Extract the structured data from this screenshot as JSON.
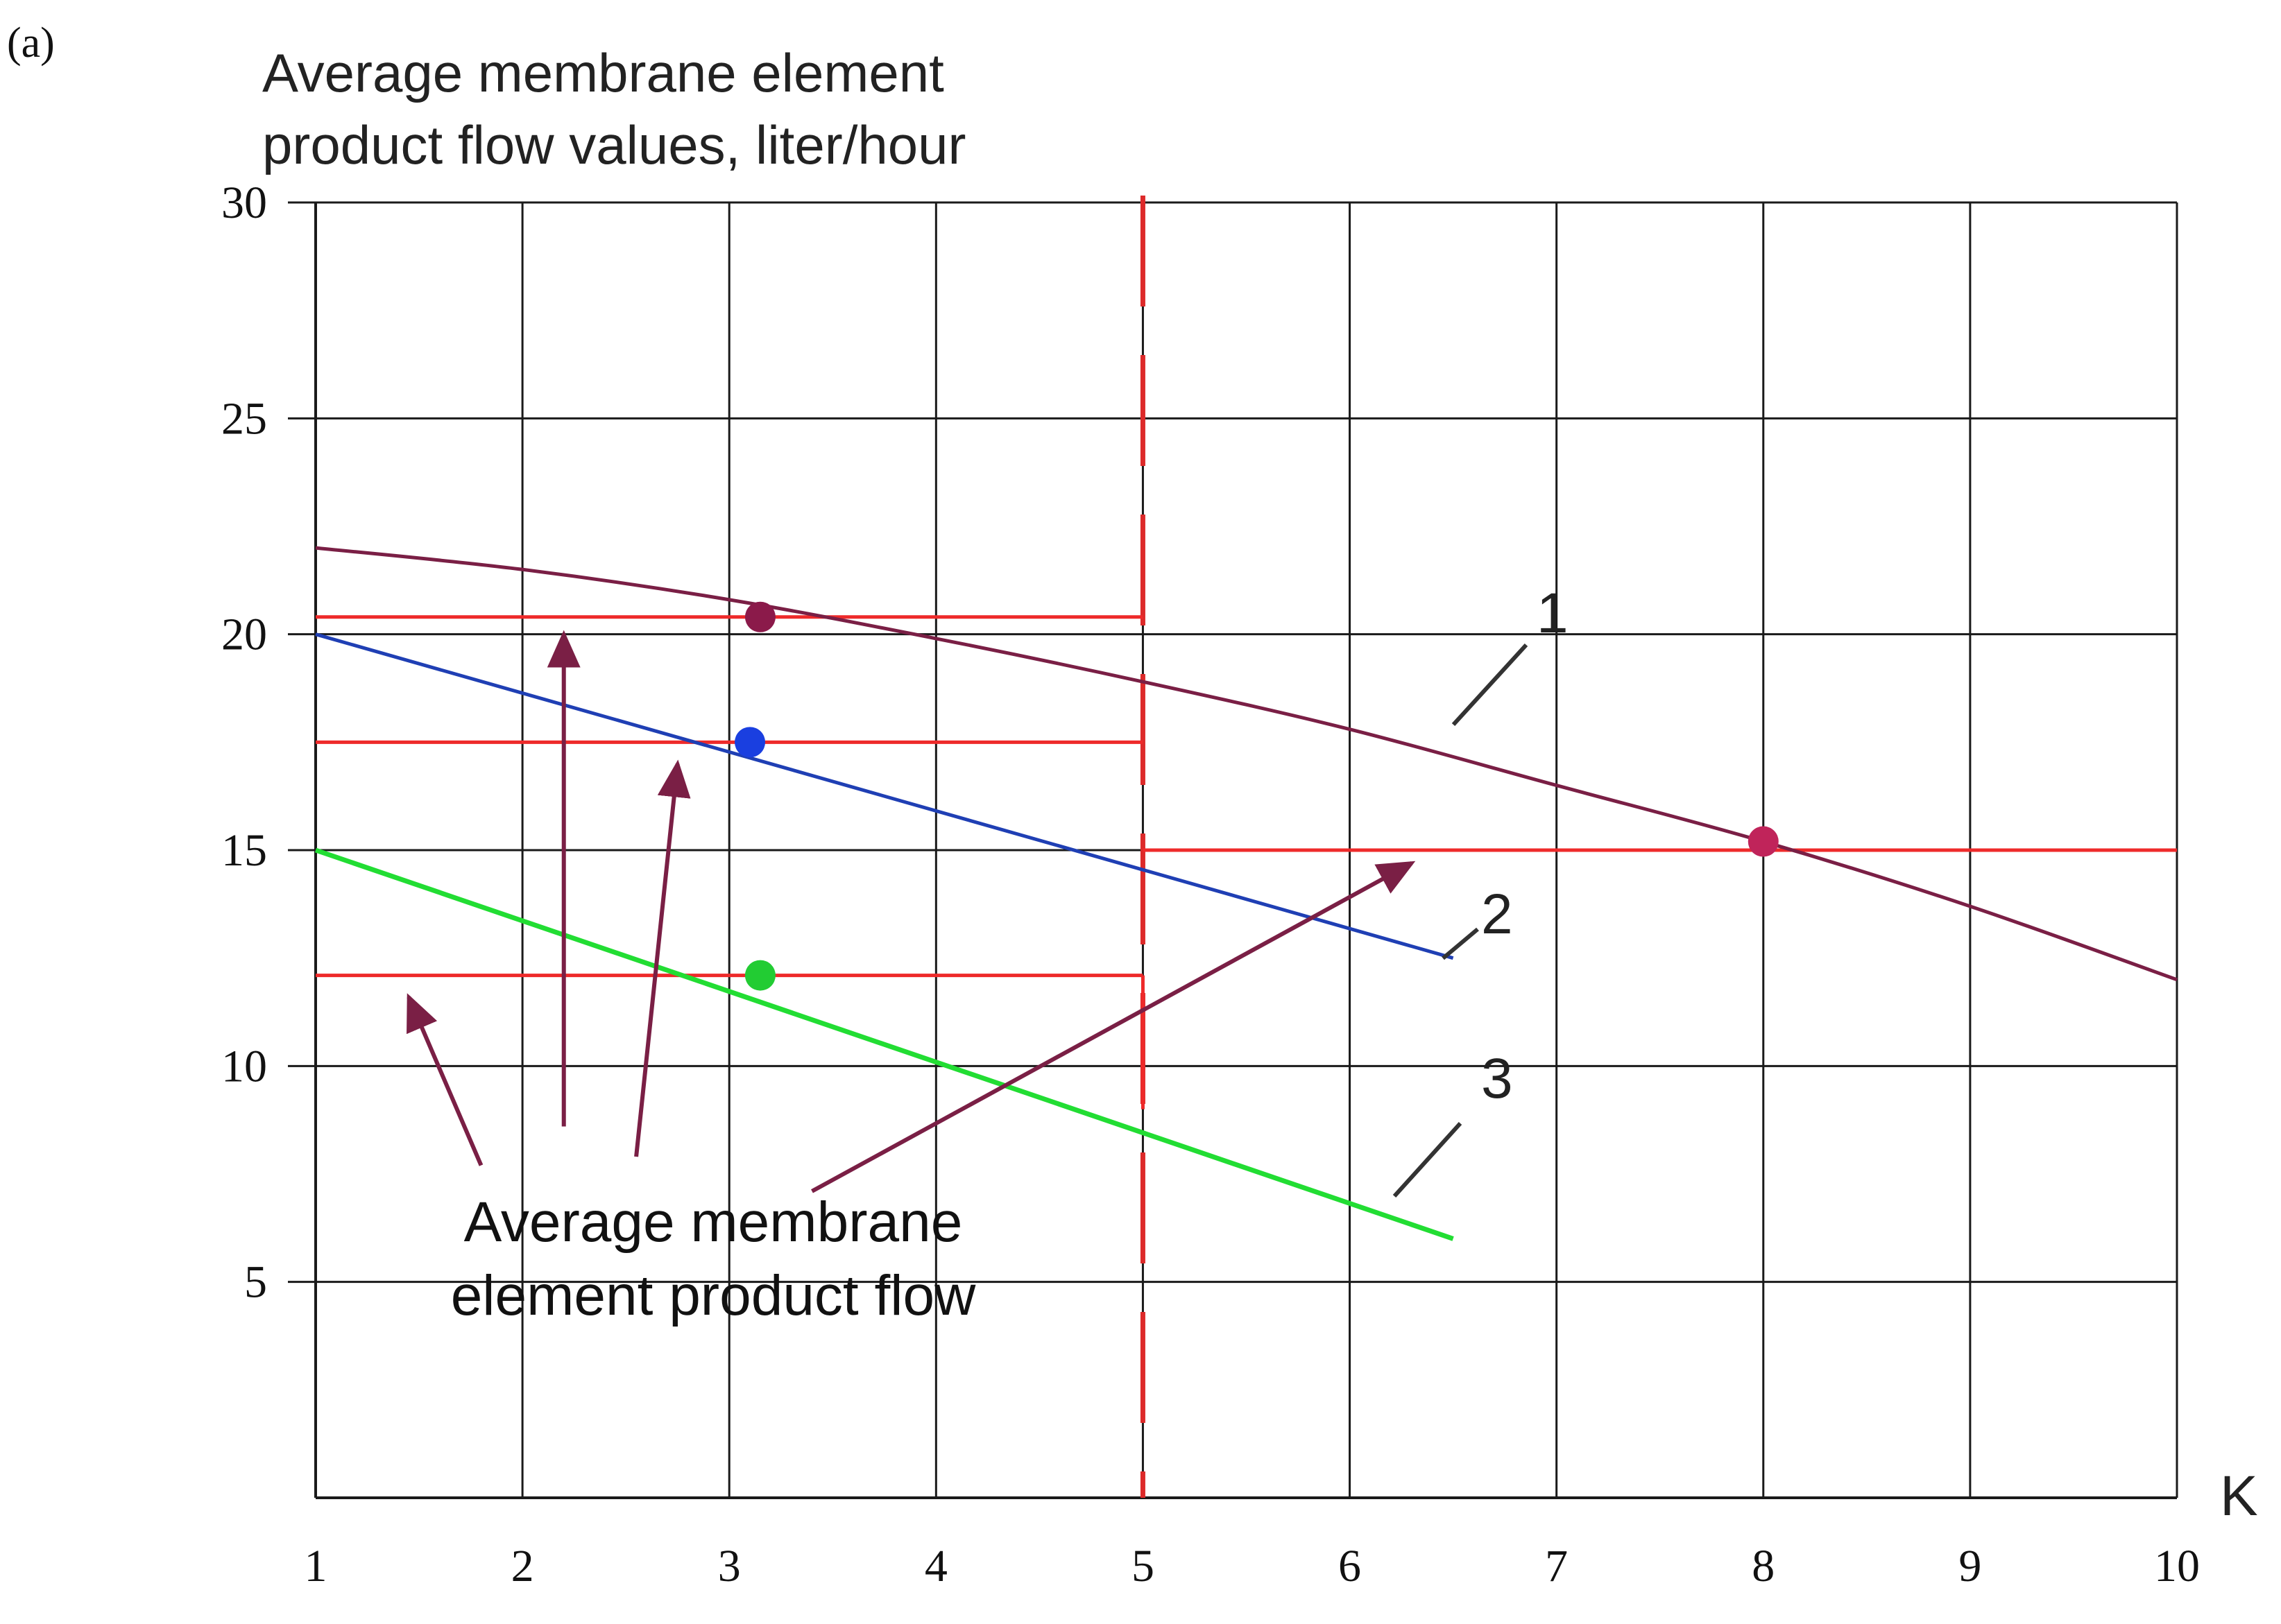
{
  "panel_label": "(a)",
  "chart_data": {
    "type": "line",
    "title": "Average membrane element product flow values, liter/hour",
    "title_lines": [
      "Average membrane element",
      "product flow values, liter/hour"
    ],
    "xlabel": "K",
    "ylabel": "Average membrane element product flow values, liter/hour",
    "xlim": [
      1,
      10
    ],
    "ylim": [
      0,
      30
    ],
    "x_ticks": [
      1,
      2,
      3,
      4,
      5,
      6,
      7,
      8,
      9,
      10
    ],
    "y_ticks": [
      5,
      10,
      15,
      20,
      25,
      30
    ],
    "grid": true,
    "series": [
      {
        "name": "1",
        "color": "#7a1f45",
        "x": [
          1,
          2,
          3,
          4,
          5,
          6,
          7,
          8,
          9,
          10
        ],
        "y": [
          22,
          21.5,
          20.8,
          19.9,
          18.9,
          17.8,
          16.5,
          15.2,
          13.7,
          12.0
        ]
      },
      {
        "name": "2",
        "color": "#1f3fb4",
        "x": [
          1,
          6.5
        ],
        "y": [
          20,
          12.5
        ]
      },
      {
        "name": "3",
        "color": "#22dd33",
        "x": [
          1,
          6.5
        ],
        "y": [
          15,
          6
        ]
      }
    ],
    "reference_lines": [
      {
        "kind": "vertical-dashed",
        "color": "#dd2a2a",
        "x": 5
      },
      {
        "kind": "horizontal",
        "color": "#ee2a2a",
        "y": 20.4,
        "x_range": [
          1,
          5
        ]
      },
      {
        "kind": "horizontal",
        "color": "#ee2a2a",
        "y": 17.5,
        "x_range": [
          1,
          5
        ]
      },
      {
        "kind": "horizontal",
        "color": "#ee2a2a",
        "y": 12.1,
        "x_range": [
          1,
          5
        ]
      },
      {
        "kind": "horizontal",
        "color": "#ee2a2a",
        "y": 15.0,
        "x_range": [
          5,
          10
        ]
      }
    ],
    "markers": [
      {
        "x": 3.15,
        "y": 20.4,
        "color": "#8b1a4a"
      },
      {
        "x": 3.1,
        "y": 17.5,
        "color": "#1a3fe0"
      },
      {
        "x": 3.15,
        "y": 12.1,
        "color": "#22cc33"
      },
      {
        "x": 8.0,
        "y": 15.2,
        "color": "#c0245a"
      }
    ],
    "annotations": {
      "curve_labels": [
        "1",
        "2",
        "3"
      ],
      "callout_text": [
        "Average membrane",
        "element product flow"
      ],
      "arrows": [
        {
          "from": [
            1.8,
            7.7
          ],
          "to": [
            1.45,
            11.6
          ]
        },
        {
          "from": [
            2.2,
            8.6
          ],
          "to": [
            2.2,
            20.0
          ]
        },
        {
          "from": [
            2.55,
            7.9
          ],
          "to": [
            2.75,
            17.0
          ]
        },
        {
          "from": [
            3.4,
            7.1
          ],
          "to": [
            6.3,
            14.7
          ]
        }
      ]
    }
  },
  "colors": {
    "grid": "#1a1a1a",
    "reference": "#ee2a2a",
    "arrow": "#7a1f45"
  }
}
